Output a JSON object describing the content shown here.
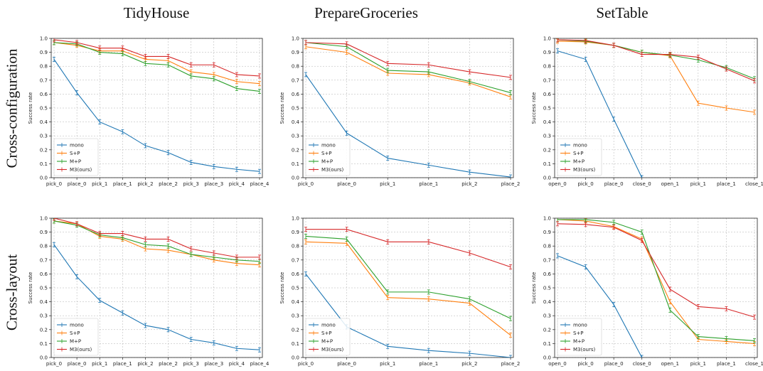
{
  "figure": {
    "column_titles": [
      "TidyHouse",
      "PrepareGroceries",
      "SetTable"
    ],
    "row_titles": [
      "Cross-configuration",
      "Cross-layout"
    ],
    "series_colors": {
      "mono": "#1f77b4",
      "S+P": "#ff7f0e",
      "M+P": "#2ca02c",
      "M3(ours)": "#d62728"
    }
  },
  "chart_data": [
    {
      "type": "line",
      "row": "Cross-configuration",
      "column": "TidyHouse",
      "ylabel": "Success rate",
      "ylim": [
        0,
        1.0
      ],
      "grid": true,
      "legend": "bottom-left",
      "categories": [
        "pick_0",
        "place_0",
        "pick_1",
        "place_1",
        "pick_2",
        "place_2",
        "pick_3",
        "place_3",
        "pick_4",
        "place_4"
      ],
      "series": [
        {
          "name": "mono",
          "values": [
            0.85,
            0.61,
            0.4,
            0.33,
            0.23,
            0.18,
            0.11,
            0.08,
            0.06,
            0.045
          ]
        },
        {
          "name": "S+P",
          "values": [
            0.97,
            0.95,
            0.91,
            0.91,
            0.85,
            0.84,
            0.76,
            0.74,
            0.69,
            0.675
          ]
        },
        {
          "name": "M+P",
          "values": [
            0.97,
            0.96,
            0.9,
            0.89,
            0.82,
            0.81,
            0.73,
            0.71,
            0.64,
            0.62
          ]
        },
        {
          "name": "M3(ours)",
          "values": [
            0.99,
            0.97,
            0.93,
            0.93,
            0.87,
            0.87,
            0.81,
            0.81,
            0.74,
            0.73
          ]
        }
      ]
    },
    {
      "type": "line",
      "row": "Cross-configuration",
      "column": "PrepareGroceries",
      "ylabel": "Success rate",
      "ylim": [
        0,
        1.0
      ],
      "grid": true,
      "legend": "bottom-left",
      "categories": [
        "pick_0",
        "place_0",
        "pick_1",
        "place_1",
        "pick_2",
        "place_2"
      ],
      "series": [
        {
          "name": "mono",
          "values": [
            0.74,
            0.32,
            0.14,
            0.09,
            0.04,
            0.005
          ]
        },
        {
          "name": "S+P",
          "values": [
            0.94,
            0.9,
            0.75,
            0.74,
            0.68,
            0.58
          ]
        },
        {
          "name": "M+P",
          "values": [
            0.97,
            0.94,
            0.77,
            0.76,
            0.69,
            0.61
          ]
        },
        {
          "name": "M3(ours)",
          "values": [
            0.97,
            0.96,
            0.82,
            0.81,
            0.76,
            0.72
          ]
        }
      ]
    },
    {
      "type": "line",
      "row": "Cross-configuration",
      "column": "SetTable",
      "ylabel": "Success rate",
      "ylim": [
        0,
        1.0
      ],
      "grid": true,
      "legend": "bottom-left",
      "categories": [
        "open_0",
        "pick_0",
        "place_0",
        "close_0",
        "open_1",
        "pick_1",
        "place_1",
        "close_1"
      ],
      "series": [
        {
          "name": "mono",
          "values": [
            0.91,
            0.85,
            0.42,
            0.0,
            null,
            null,
            null,
            null
          ]
        },
        {
          "name": "S+P",
          "values": [
            0.98,
            0.975,
            0.95,
            0.9,
            0.875,
            0.535,
            0.5,
            0.47
          ]
        },
        {
          "name": "M+P",
          "values": [
            0.99,
            0.98,
            0.95,
            0.9,
            0.88,
            0.845,
            0.79,
            0.71
          ]
        },
        {
          "name": "M3(ours)",
          "values": [
            0.99,
            0.985,
            0.95,
            0.885,
            0.885,
            0.865,
            0.78,
            0.695
          ]
        }
      ]
    },
    {
      "type": "line",
      "row": "Cross-layout",
      "column": "TidyHouse",
      "ylabel": "Success rate",
      "ylim": [
        0,
        1.0
      ],
      "grid": true,
      "legend": "bottom-left",
      "categories": [
        "pick_0",
        "place_0",
        "pick_1",
        "place_1",
        "pick_2",
        "place_2",
        "pick_3",
        "place_3",
        "pick_4",
        "place_4"
      ],
      "series": [
        {
          "name": "mono",
          "values": [
            0.81,
            0.58,
            0.41,
            0.32,
            0.23,
            0.2,
            0.13,
            0.105,
            0.065,
            0.055
          ]
        },
        {
          "name": "S+P",
          "values": [
            0.98,
            0.96,
            0.87,
            0.85,
            0.78,
            0.77,
            0.74,
            0.7,
            0.675,
            0.665
          ]
        },
        {
          "name": "M+P",
          "values": [
            0.98,
            0.95,
            0.88,
            0.86,
            0.81,
            0.8,
            0.74,
            0.72,
            0.7,
            0.69
          ]
        },
        {
          "name": "M3(ours)",
          "values": [
            1.0,
            0.96,
            0.89,
            0.89,
            0.85,
            0.85,
            0.78,
            0.75,
            0.72,
            0.72
          ]
        }
      ]
    },
    {
      "type": "line",
      "row": "Cross-layout",
      "column": "PrepareGroceries",
      "ylabel": "Success rate",
      "ylim": [
        0,
        1.0
      ],
      "grid": true,
      "legend": "bottom-left",
      "categories": [
        "pick_0",
        "place_0",
        "pick_1",
        "place_1",
        "pick_2",
        "place_2"
      ],
      "series": [
        {
          "name": "mono",
          "values": [
            0.6,
            0.22,
            0.08,
            0.05,
            0.03,
            0.0
          ]
        },
        {
          "name": "S+P",
          "values": [
            0.83,
            0.82,
            0.43,
            0.42,
            0.39,
            0.16
          ]
        },
        {
          "name": "M+P",
          "values": [
            0.87,
            0.85,
            0.47,
            0.47,
            0.42,
            0.28
          ]
        },
        {
          "name": "M3(ours)",
          "values": [
            0.92,
            0.92,
            0.83,
            0.83,
            0.75,
            0.65
          ]
        }
      ]
    },
    {
      "type": "line",
      "row": "Cross-layout",
      "column": "SetTable",
      "ylabel": "Success rate",
      "ylim": [
        0,
        1.0
      ],
      "grid": true,
      "legend": "bottom-left",
      "categories": [
        "open_0",
        "pick_0",
        "place_0",
        "close_0",
        "open_1",
        "pick_1",
        "place_1",
        "close_1"
      ],
      "series": [
        {
          "name": "mono",
          "values": [
            0.73,
            0.65,
            0.38,
            0.0,
            null,
            null,
            null,
            null
          ]
        },
        {
          "name": "S+P",
          "values": [
            0.99,
            0.98,
            0.94,
            0.85,
            0.4,
            0.13,
            0.115,
            0.1
          ]
        },
        {
          "name": "M+P",
          "values": [
            0.99,
            0.99,
            0.97,
            0.9,
            0.34,
            0.15,
            0.135,
            0.12
          ]
        },
        {
          "name": "M3(ours)",
          "values": [
            0.96,
            0.955,
            0.935,
            0.84,
            0.49,
            0.365,
            0.35,
            0.29
          ]
        }
      ]
    }
  ]
}
